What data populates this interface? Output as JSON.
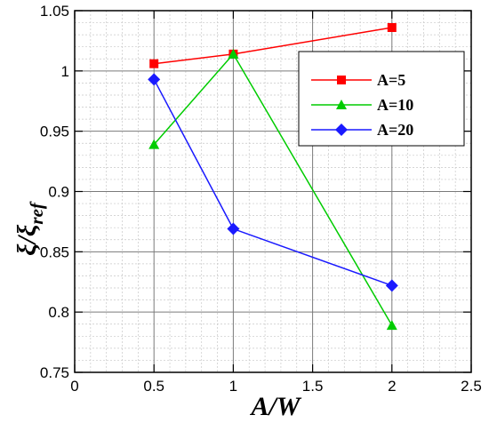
{
  "chart_data": {
    "type": "line",
    "title": "",
    "xlabel": "A/W",
    "ylabel_main": "ξ/ξ",
    "ylabel_sub": "ref",
    "xlim": [
      0,
      2.5
    ],
    "ylim": [
      0.75,
      1.05
    ],
    "xticks": [
      0,
      0.5,
      1,
      1.5,
      2,
      2.5
    ],
    "xtick_labels": [
      "0",
      "0.5",
      "1",
      "1.5",
      "2",
      "2.5"
    ],
    "yticks": [
      0.75,
      0.8,
      0.85,
      0.9,
      0.95,
      1,
      1.05
    ],
    "ytick_labels": [
      "0.75",
      "0.8",
      "0.85",
      "0.9",
      "0.95",
      "1",
      "1.05"
    ],
    "grid": true,
    "legend_position": "top-right",
    "series": [
      {
        "name": "A=5",
        "color": "#ff0000",
        "marker": "square",
        "x": [
          0.5,
          1,
          2
        ],
        "y": [
          1.006,
          1.014,
          1.036
        ]
      },
      {
        "name": "A=10",
        "color": "#00cc00",
        "marker": "triangle",
        "x": [
          0.5,
          1,
          2
        ],
        "y": [
          0.939,
          1.014,
          0.789
        ]
      },
      {
        "name": "A=20",
        "color": "#1a1aff",
        "marker": "diamond",
        "x": [
          0.5,
          1,
          2
        ],
        "y": [
          0.993,
          0.869,
          0.822
        ]
      }
    ]
  }
}
